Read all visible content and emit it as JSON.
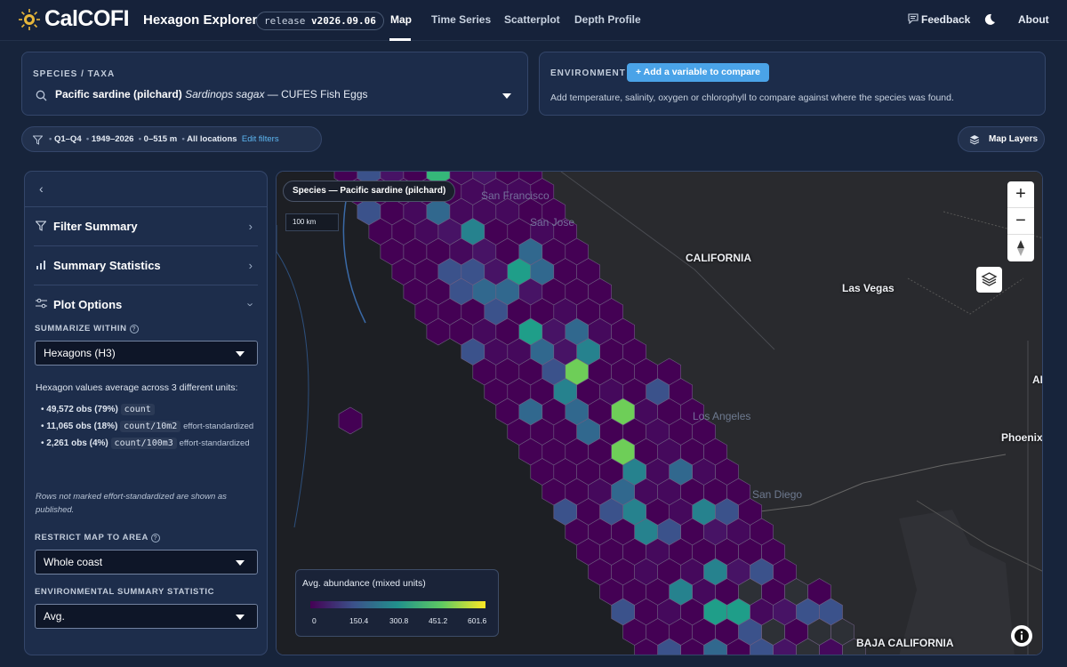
{
  "topbar": {
    "brand": "CalCOFI",
    "app": "Hexagon Explorer",
    "release_label": "release",
    "release_version": "v2026.09.06",
    "tabs": [
      {
        "label": "Map",
        "active": true
      },
      {
        "label": "Time Series"
      },
      {
        "label": "Scatterplot"
      },
      {
        "label": "Depth Profile"
      }
    ],
    "feedback": "Feedback",
    "about": "About"
  },
  "species": {
    "label": "SPECIES / TAXA",
    "common": "Pacific sardine (pilchard)",
    "scientific": "Sardinops sagax",
    "dataset": "— CUFES Fish Eggs"
  },
  "environment": {
    "label": "ENVIRONMENT",
    "add_button": "+ Add a variable to compare",
    "hint": "Add temperature, salinity, oxygen or chlorophyll to compare against where the species was found."
  },
  "filters": {
    "quarters": "Q1–Q4",
    "years": "1949–2026",
    "depth": "0–515 m",
    "locations": "All locations",
    "edit": "Edit filters"
  },
  "map_layers": "Map Layers",
  "sidebar": {
    "filter_summary": "Filter Summary",
    "summary_stats": "Summary Statistics",
    "plot_options": "Plot Options",
    "summarize_label": "SUMMARIZE WITHIN",
    "summarize_value": "Hexagons (H3)",
    "units_intro": "Hexagon values average across 3 different units:",
    "units": [
      {
        "obs": "49,572 obs (79%)",
        "unit": "count",
        "note": ""
      },
      {
        "obs": "11,065 obs (18%)",
        "unit": "count/10m2",
        "note": "effort-standardized"
      },
      {
        "obs": "2,261 obs (4%)",
        "unit": "count/100m3",
        "note": "effort-standardized"
      }
    ],
    "rows_note": "Rows not marked effort-standardized are shown as published.",
    "restrict_label": "RESTRICT MAP TO AREA",
    "restrict_value": "Whole coast",
    "env_stat_label": "ENVIRONMENTAL SUMMARY STATISTIC",
    "env_stat_value": "Avg."
  },
  "map": {
    "chip": "Species — Pacific sardine (pilchard)",
    "scale": "100 km",
    "places": {
      "california": "CALIFORNIA",
      "las_vegas": "Las Vegas",
      "phoenix": "Phoenix",
      "ari": "ARI",
      "baja": "BAJA CALIFORNIA",
      "sf": "San Francisco",
      "sj": "San Jose",
      "la": "Los Angeles",
      "sd": "San Diego"
    },
    "legend": {
      "title": "Avg. abundance (mixed units)",
      "ticks": [
        "0",
        "150.4",
        "300.8",
        "451.2",
        "601.6"
      ]
    }
  },
  "icons": {
    "logo": "sun-logo-icon",
    "search": "search-icon",
    "filter": "filter-icon",
    "layers": "layers-icon",
    "feedback": "message-icon",
    "theme": "moon-icon"
  }
}
